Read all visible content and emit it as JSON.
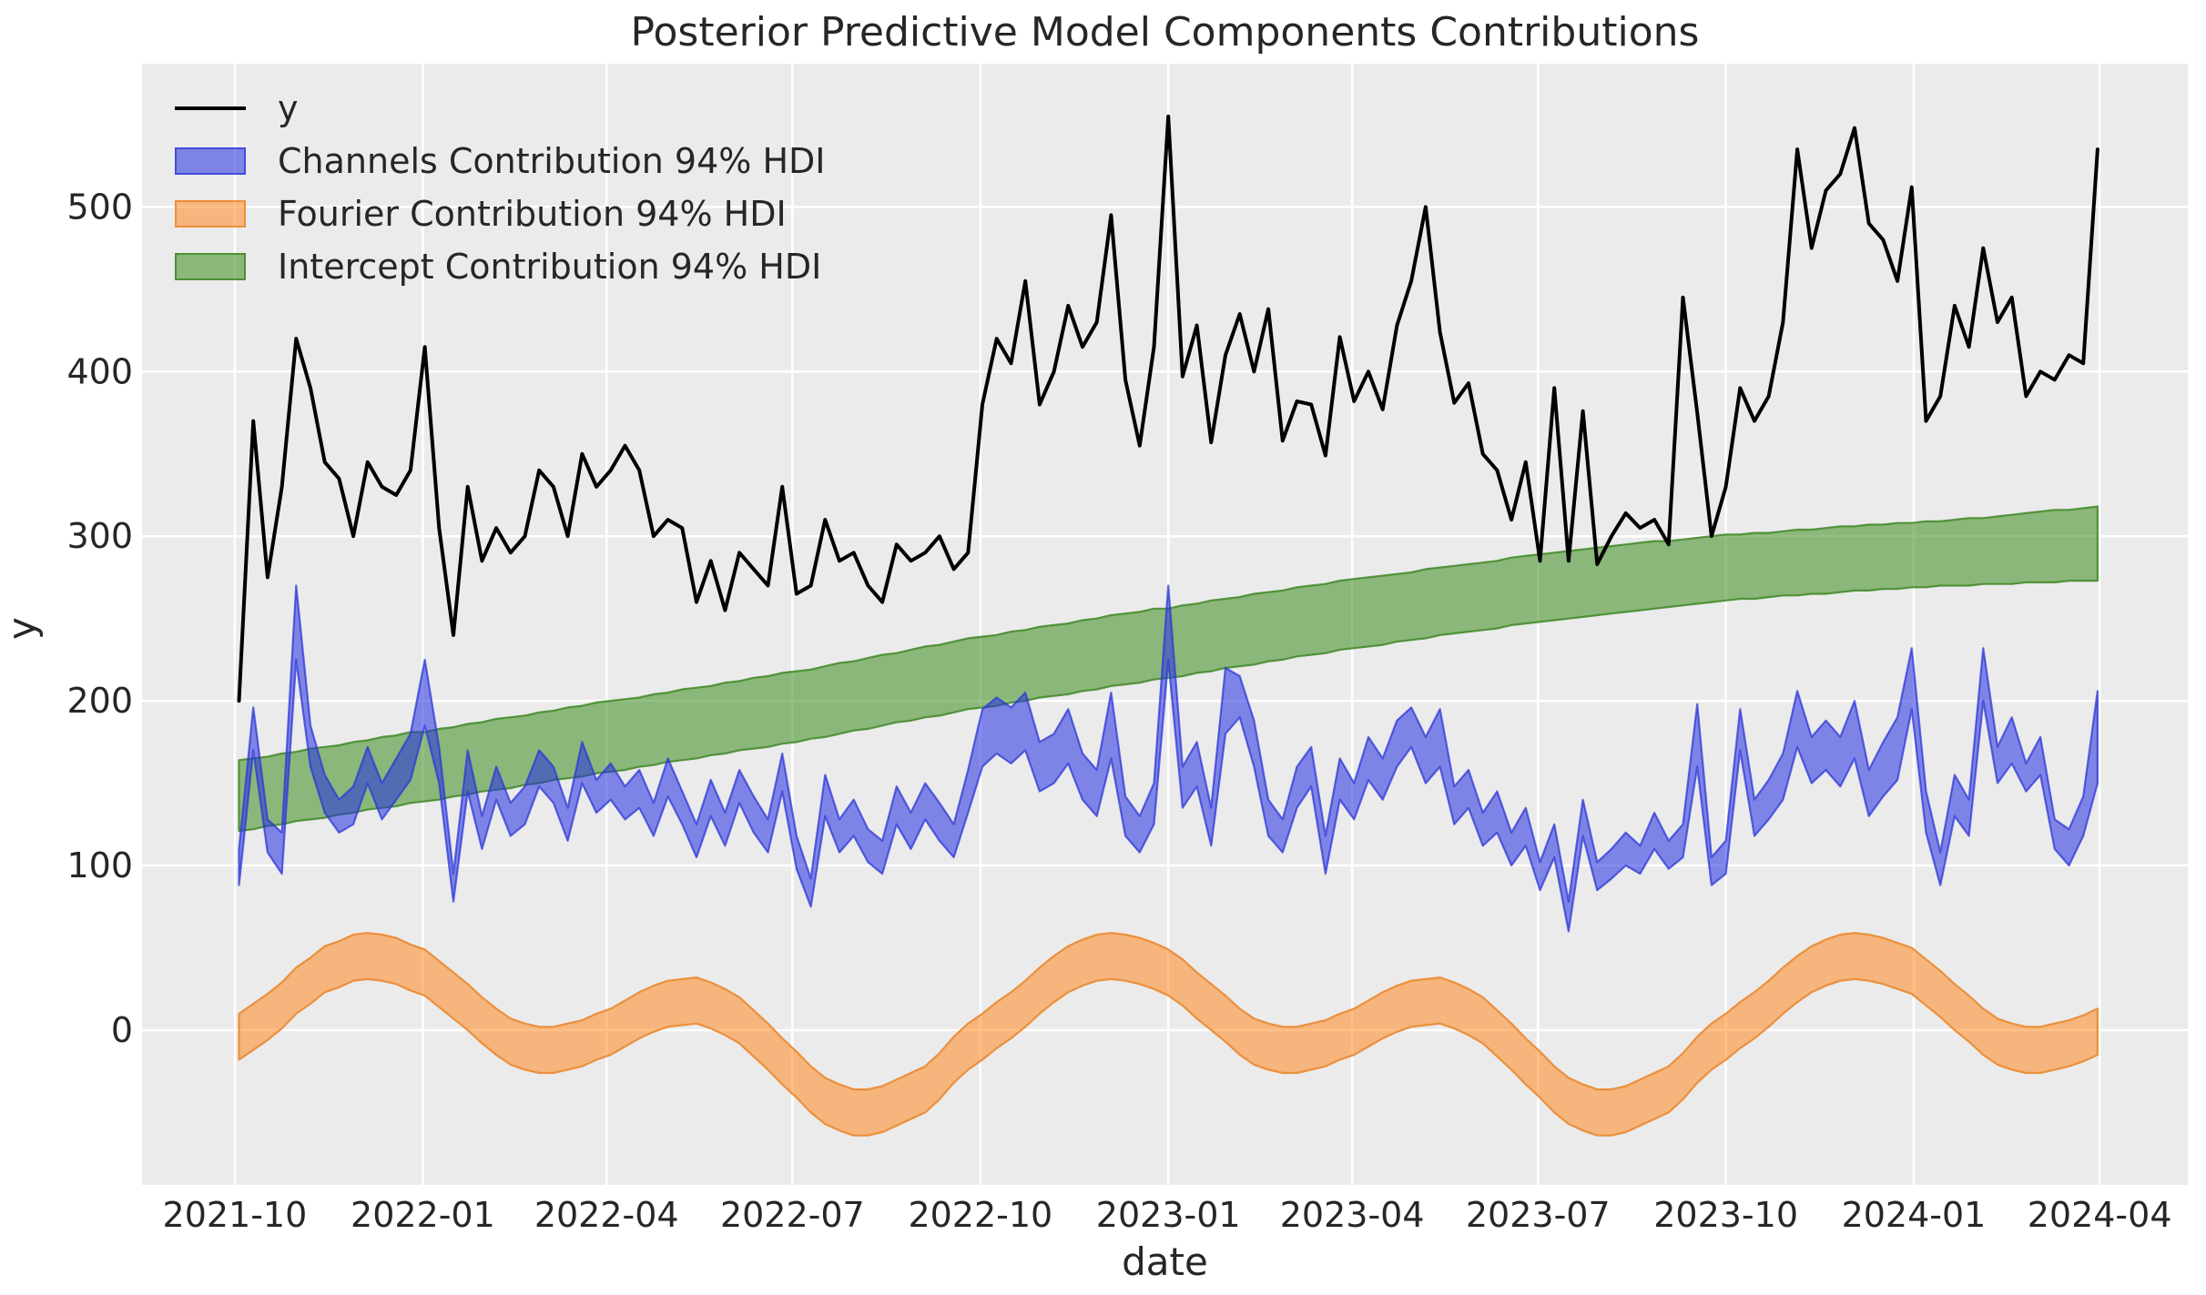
{
  "figure": {
    "title": "Posterior Predictive Model Components Contributions"
  },
  "legend": {
    "items": [
      {
        "label": "y",
        "swatch": "line"
      },
      {
        "label": "Channels Contribution 94% HDI",
        "swatch": "patch",
        "key": "channels"
      },
      {
        "label": "Fourier Contribution 94% HDI",
        "swatch": "patch",
        "key": "fourier"
      },
      {
        "label": "Intercept Contribution 94% HDI",
        "swatch": "patch",
        "key": "intercept"
      }
    ],
    "position": "upper left"
  },
  "chart_data": {
    "type": "line",
    "subtype": "time-series line with three 94% HDI bands",
    "title": "Posterior Predictive Model Components Contributions",
    "xlabel": "date",
    "ylabel": "y",
    "grid": true,
    "plot_background": "#ebebeb",
    "x_start_date": "2021-10-03",
    "x_step_days": 7,
    "n_points": 131,
    "x_tick_labels": [
      "2021-10",
      "2022-01",
      "2022-04",
      "2022-07",
      "2022-10",
      "2023-01",
      "2023-04",
      "2023-07",
      "2023-10",
      "2024-01",
      "2024-04"
    ],
    "x_tick_weeks": [
      -0.29,
      12.86,
      25.71,
      38.71,
      51.86,
      65.0,
      77.86,
      90.86,
      104.0,
      117.14,
      130.14
    ],
    "y_ticks": [
      0,
      100,
      200,
      300,
      400,
      500
    ],
    "ylim": [
      -94,
      587
    ],
    "xlim_weeks": [
      -6.78,
      136.31
    ],
    "colors": {
      "y_line": "#000000",
      "channels_fill": "rgba(36,48,226,0.55)",
      "channels_edge": "rgba(45,55,215,0.75)",
      "fourier_fill": "rgba(255,127,14,0.5)",
      "fourier_edge": "rgba(235,140,55,0.95)",
      "intercept_fill": "rgba(60,140,30,0.55)",
      "intercept_edge": "rgba(70,140,45,0.9)",
      "grid": "#ffffff",
      "text": "#262626"
    },
    "series": {
      "y": {
        "label": "y",
        "type": "line",
        "values": [
          200,
          370,
          275,
          330,
          420,
          390,
          345,
          335,
          300,
          345,
          330,
          325,
          340,
          415,
          305,
          240,
          330,
          285,
          305,
          290,
          300,
          340,
          330,
          300,
          350,
          330,
          340,
          355,
          340,
          300,
          310,
          305,
          260,
          285,
          255,
          290,
          280,
          270,
          330,
          265,
          270,
          310,
          285,
          290,
          270,
          260,
          295,
          285,
          290,
          300,
          280,
          290,
          380,
          420,
          405,
          455,
          380,
          400,
          440,
          415,
          430,
          495,
          395,
          355,
          415,
          555,
          397,
          428,
          357,
          410,
          435,
          400,
          438,
          358,
          382,
          380,
          349,
          421,
          382,
          400,
          377,
          428,
          455,
          500,
          424,
          381,
          393,
          350,
          340,
          310,
          345,
          285,
          390,
          285,
          376,
          283,
          300,
          314,
          305,
          310,
          295,
          445,
          375,
          300,
          330,
          390,
          370,
          385,
          430,
          535,
          475,
          510,
          520,
          548,
          490,
          480,
          455,
          512,
          370,
          385,
          440,
          415,
          475,
          430,
          445,
          385,
          400,
          395,
          410,
          405,
          535
        ]
      },
      "channels": {
        "label": "Channels Contribution 94% HDI",
        "type": "band",
        "lower": [
          88,
          170,
          108,
          95,
          225,
          160,
          132,
          120,
          125,
          150,
          128,
          140,
          152,
          185,
          150,
          78,
          145,
          110,
          140,
          118,
          125,
          148,
          138,
          115,
          150,
          132,
          140,
          128,
          135,
          118,
          142,
          125,
          105,
          130,
          112,
          138,
          120,
          108,
          145,
          98,
          75,
          130,
          108,
          118,
          102,
          95,
          125,
          110,
          128,
          115,
          105,
          132,
          160,
          168,
          162,
          170,
          145,
          150,
          162,
          140,
          130,
          165,
          118,
          108,
          125,
          225,
          135,
          148,
          112,
          180,
          190,
          160,
          118,
          108,
          135,
          148,
          95,
          140,
          128,
          152,
          140,
          160,
          172,
          150,
          160,
          125,
          135,
          112,
          120,
          100,
          112,
          85,
          105,
          60,
          118,
          85,
          92,
          100,
          95,
          110,
          98,
          105,
          160,
          88,
          95,
          170,
          118,
          128,
          140,
          172,
          150,
          158,
          148,
          165,
          130,
          142,
          152,
          195,
          120,
          88,
          130,
          118,
          200,
          150,
          162,
          145,
          155,
          110,
          100,
          118,
          150
        ],
        "upper": [
          110,
          196,
          128,
          120,
          270,
          185,
          155,
          140,
          148,
          172,
          150,
          165,
          180,
          225,
          172,
          95,
          170,
          130,
          160,
          138,
          148,
          170,
          160,
          135,
          175,
          152,
          162,
          148,
          158,
          138,
          165,
          145,
          125,
          152,
          132,
          158,
          142,
          128,
          168,
          118,
          92,
          155,
          128,
          140,
          122,
          115,
          148,
          132,
          150,
          138,
          125,
          158,
          195,
          202,
          196,
          205,
          175,
          180,
          195,
          168,
          158,
          205,
          142,
          130,
          150,
          270,
          160,
          175,
          135,
          220,
          215,
          188,
          140,
          128,
          160,
          172,
          118,
          165,
          150,
          178,
          165,
          188,
          196,
          178,
          195,
          148,
          158,
          132,
          145,
          120,
          135,
          102,
          125,
          78,
          140,
          102,
          110,
          120,
          112,
          132,
          115,
          125,
          198,
          105,
          115,
          195,
          140,
          152,
          168,
          206,
          178,
          188,
          178,
          200,
          158,
          175,
          190,
          232,
          145,
          108,
          155,
          140,
          232,
          172,
          190,
          162,
          178,
          128,
          122,
          142,
          206
        ]
      },
      "fourier": {
        "label": "Fourier Contribution 94% HDI",
        "type": "band",
        "lower": [
          -18,
          -12,
          -6,
          1,
          10,
          16,
          23,
          26,
          30,
          31,
          30,
          28,
          24,
          21,
          14,
          7,
          0,
          -8,
          -15,
          -21,
          -24,
          -26,
          -26,
          -24,
          -22,
          -18,
          -15,
          -10,
          -5,
          -1,
          2,
          3,
          4,
          1,
          -3,
          -8,
          -16,
          -24,
          -33,
          -41,
          -50,
          -57,
          -61,
          -64,
          -64,
          -62,
          -58,
          -54,
          -50,
          -42,
          -32,
          -24,
          -18,
          -11,
          -5,
          2,
          10,
          17,
          23,
          27,
          30,
          31,
          30,
          28,
          25,
          21,
          15,
          7,
          0,
          -7,
          -15,
          -21,
          -24,
          -26,
          -26,
          -24,
          -22,
          -18,
          -15,
          -10,
          -5,
          -1,
          2,
          3,
          4,
          1,
          -3,
          -8,
          -16,
          -24,
          -33,
          -41,
          -50,
          -57,
          -61,
          -64,
          -64,
          -62,
          -58,
          -54,
          -50,
          -42,
          -32,
          -24,
          -18,
          -11,
          -5,
          2,
          10,
          17,
          23,
          27,
          30,
          31,
          30,
          28,
          25,
          22,
          15,
          8,
          0,
          -7,
          -15,
          -21,
          -24,
          -26,
          -26,
          -24,
          -22,
          -19,
          -15
        ],
        "upper": [
          10,
          16,
          22,
          29,
          38,
          44,
          51,
          54,
          58,
          59,
          58,
          56,
          52,
          49,
          42,
          35,
          28,
          20,
          13,
          7,
          4,
          2,
          2,
          4,
          6,
          10,
          13,
          18,
          23,
          27,
          30,
          31,
          32,
          29,
          25,
          20,
          12,
          4,
          -5,
          -13,
          -22,
          -29,
          -33,
          -36,
          -36,
          -34,
          -30,
          -26,
          -22,
          -14,
          -4,
          4,
          10,
          17,
          23,
          30,
          38,
          45,
          51,
          55,
          58,
          59,
          58,
          56,
          53,
          49,
          43,
          35,
          28,
          21,
          13,
          7,
          4,
          2,
          2,
          4,
          6,
          10,
          13,
          18,
          23,
          27,
          30,
          31,
          32,
          29,
          25,
          20,
          12,
          4,
          -5,
          -13,
          -22,
          -29,
          -33,
          -36,
          -36,
          -34,
          -30,
          -26,
          -22,
          -14,
          -4,
          4,
          10,
          17,
          23,
          30,
          38,
          45,
          51,
          55,
          58,
          59,
          58,
          56,
          53,
          50,
          43,
          36,
          28,
          21,
          13,
          7,
          4,
          2,
          2,
          4,
          6,
          9,
          13
        ]
      },
      "intercept": {
        "label": "Intercept Contribution 94% HDI",
        "type": "band",
        "lower": [
          121,
          122,
          124,
          125,
          127,
          128,
          129,
          131,
          132,
          134,
          135,
          136,
          138,
          139,
          140,
          142,
          143,
          145,
          146,
          147,
          149,
          150,
          152,
          153,
          154,
          156,
          157,
          158,
          160,
          161,
          163,
          164,
          165,
          167,
          168,
          170,
          171,
          172,
          174,
          175,
          177,
          178,
          180,
          182,
          183,
          185,
          187,
          188,
          190,
          191,
          193,
          195,
          196,
          197,
          199,
          200,
          202,
          203,
          204,
          206,
          207,
          209,
          210,
          211,
          213,
          214,
          215,
          217,
          218,
          220,
          221,
          222,
          224,
          225,
          227,
          228,
          229,
          231,
          232,
          233,
          234,
          236,
          237,
          238,
          240,
          241,
          242,
          243,
          244,
          246,
          247,
          248,
          249,
          250,
          251,
          252,
          253,
          254,
          255,
          256,
          257,
          258,
          259,
          260,
          261,
          262,
          262,
          263,
          264,
          264,
          265,
          265,
          266,
          267,
          267,
          268,
          268,
          269,
          269,
          270,
          270,
          270,
          271,
          271,
          271,
          272,
          272,
          272,
          273,
          273,
          273
        ],
        "upper": [
          164,
          165,
          166,
          168,
          169,
          171,
          172,
          173,
          175,
          176,
          178,
          179,
          181,
          181,
          183,
          184,
          186,
          187,
          189,
          190,
          191,
          193,
          194,
          196,
          197,
          199,
          200,
          201,
          202,
          204,
          205,
          207,
          208,
          209,
          211,
          212,
          214,
          215,
          217,
          218,
          219,
          221,
          223,
          224,
          226,
          228,
          229,
          231,
          233,
          234,
          236,
          238,
          239,
          240,
          242,
          243,
          245,
          246,
          247,
          249,
          250,
          252,
          253,
          254,
          256,
          256,
          258,
          259,
          261,
          262,
          263,
          265,
          266,
          267,
          269,
          270,
          271,
          273,
          274,
          275,
          276,
          277,
          278,
          280,
          281,
          282,
          283,
          284,
          285,
          287,
          288,
          289,
          290,
          291,
          292,
          293,
          294,
          295,
          296,
          297,
          297,
          298,
          299,
          300,
          301,
          301,
          302,
          302,
          303,
          304,
          304,
          305,
          306,
          306,
          307,
          307,
          308,
          308,
          309,
          309,
          310,
          311,
          311,
          312,
          313,
          314,
          315,
          316,
          316,
          317,
          318
        ]
      }
    }
  }
}
